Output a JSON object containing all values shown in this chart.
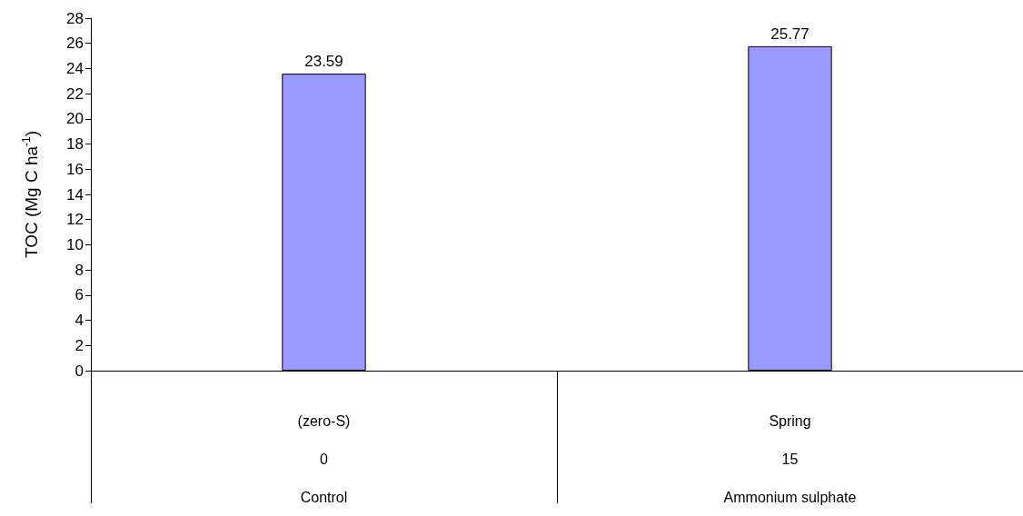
{
  "chart_data": {
    "type": "bar",
    "ylabel": "TOC (Mg C ha$^{-1}$)",
    "categories": [
      "(zero-S)\n0\nControl",
      "Spring\n15\nAmmonium sulphate"
    ],
    "values": [
      23.59,
      25.77
    ],
    "color": "#9999ff",
    "ylim": [
      0,
      28
    ],
    "yticks": [
      0,
      2,
      4,
      6,
      8,
      10,
      12,
      14,
      16,
      18,
      20,
      22,
      24,
      26,
      28
    ],
    "data_labels": true,
    "grid": false
  }
}
